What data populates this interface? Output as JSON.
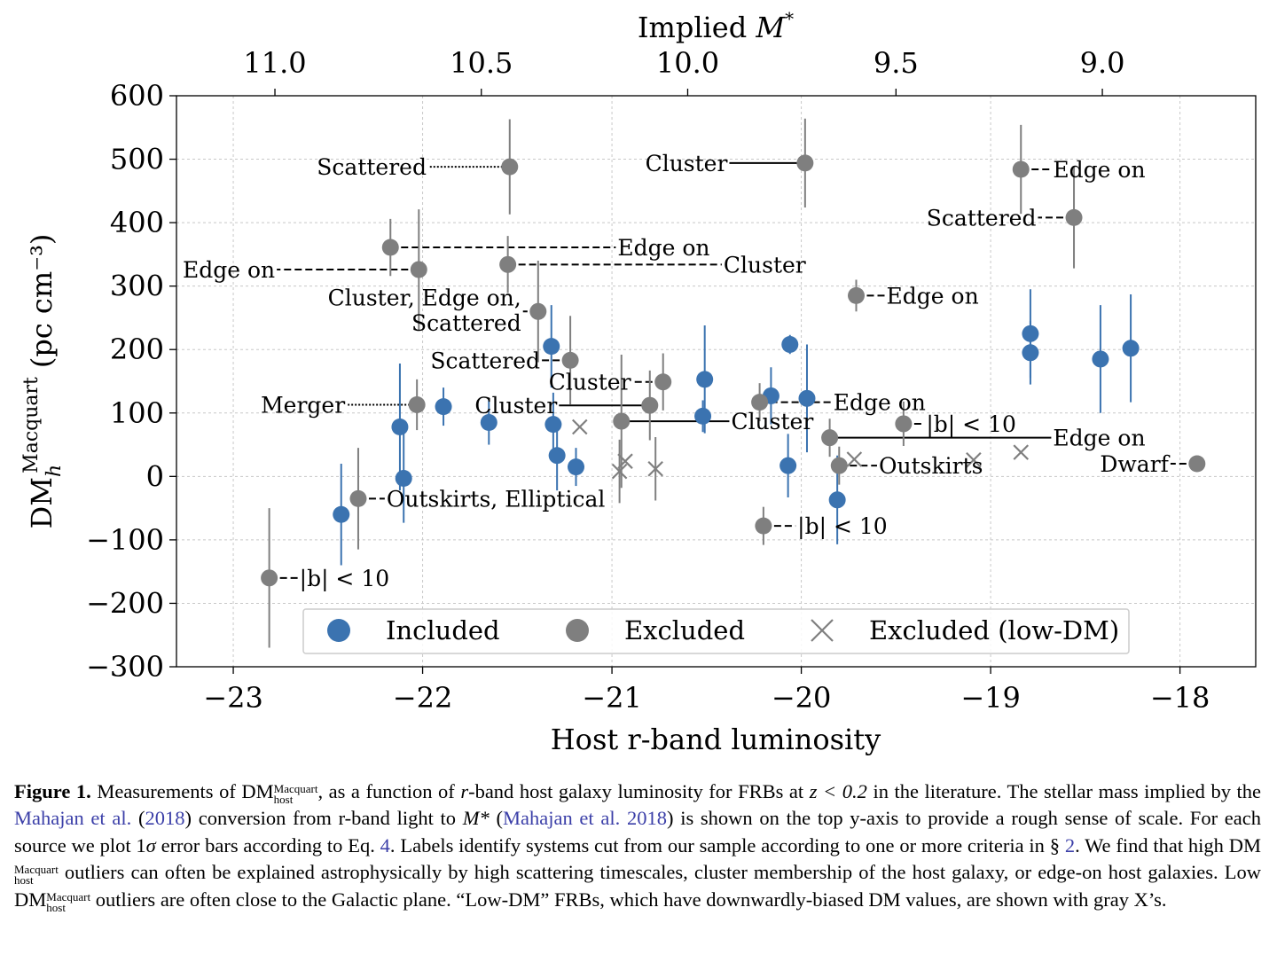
{
  "chart_data": {
    "type": "scatter",
    "xlabel": "Host r-band luminosity",
    "ylabel": "(pc cm⁻³)",
    "ylabel_base": "DM",
    "ylabel_sup": "Macquart",
    "ylabel_sub": "h",
    "top_axis_label": "Implied M*",
    "xlim": [
      -23.3,
      -17.6
    ],
    "ylim": [
      -300,
      600
    ],
    "x_ticks": [
      -23,
      -22,
      -21,
      -20,
      -19,
      -18
    ],
    "x_tick_labels": [
      "−23",
      "−22",
      "−21",
      "−20",
      "−19",
      "−18"
    ],
    "y_ticks": [
      -300,
      -200,
      -100,
      0,
      100,
      200,
      300,
      400,
      500,
      600
    ],
    "y_tick_labels": [
      "−300",
      "−200",
      "−100",
      "0",
      "100",
      "200",
      "300",
      "400",
      "500",
      "600"
    ],
    "top_ticks_x": [
      -22.78,
      -21.69,
      -20.6,
      -19.5,
      -18.41
    ],
    "top_tick_labels": [
      "11.0",
      "10.5",
      "10.0",
      "9.5",
      "9.0"
    ],
    "grid": true,
    "legend_position": "bottom",
    "legend": [
      {
        "label": "Included",
        "marker": "circle",
        "color": "#3b73b0"
      },
      {
        "label": "Excluded",
        "marker": "circle",
        "color": "#7f7f7f"
      },
      {
        "label": "Excluded (low-DM)",
        "marker": "x",
        "color": "#7f7f7f"
      }
    ],
    "series": [
      {
        "name": "Included",
        "color": "#3b73b0",
        "marker": "circle",
        "points": [
          {
            "x": -22.43,
            "y": -60,
            "err": 80
          },
          {
            "x": -22.12,
            "y": 78,
            "err": 100
          },
          {
            "x": -22.1,
            "y": -3,
            "err": 70
          },
          {
            "x": -21.89,
            "y": 110,
            "err": 30
          },
          {
            "x": -21.65,
            "y": 85,
            "err": 35
          },
          {
            "x": -21.32,
            "y": 205,
            "err": 65
          },
          {
            "x": -21.31,
            "y": 82,
            "err": 50
          },
          {
            "x": -21.29,
            "y": 33,
            "err": 55
          },
          {
            "x": -21.19,
            "y": 15,
            "err": 30
          },
          {
            "x": -20.52,
            "y": 95,
            "err": 25
          },
          {
            "x": -20.51,
            "y": 153,
            "err": 85
          },
          {
            "x": -20.16,
            "y": 127,
            "err": 45
          },
          {
            "x": -20.07,
            "y": 17,
            "err": 50
          },
          {
            "x": -20.06,
            "y": 208,
            "err": 15
          },
          {
            "x": -19.97,
            "y": 123,
            "err": 85
          },
          {
            "x": -19.81,
            "y": -37,
            "err": 70
          },
          {
            "x": -18.79,
            "y": 225,
            "err": 70
          },
          {
            "x": -18.79,
            "y": 195,
            "err": 50
          },
          {
            "x": -18.42,
            "y": 185,
            "err": 85
          },
          {
            "x": -18.26,
            "y": 202,
            "err": 85
          }
        ]
      },
      {
        "name": "Excluded",
        "color": "#7f7f7f",
        "marker": "circle",
        "points": [
          {
            "x": -22.81,
            "y": -160,
            "err": 110
          },
          {
            "x": -22.34,
            "y": -35,
            "err": 80
          },
          {
            "x": -22.17,
            "y": 361,
            "err": 45
          },
          {
            "x": -22.03,
            "y": 113,
            "err": 40
          },
          {
            "x": -22.02,
            "y": 326,
            "err": 95
          },
          {
            "x": -21.54,
            "y": 488,
            "err": 75
          },
          {
            "x": -21.55,
            "y": 334,
            "err": 45
          },
          {
            "x": -21.39,
            "y": 260,
            "err": 80
          },
          {
            "x": -21.22,
            "y": 183,
            "err": 70
          },
          {
            "x": -20.95,
            "y": 87,
            "err": 105
          },
          {
            "x": -20.8,
            "y": 112,
            "err": 55
          },
          {
            "x": -20.73,
            "y": 149,
            "err": 45
          },
          {
            "x": -20.22,
            "y": 117,
            "err": 30
          },
          {
            "x": -20.2,
            "y": -78,
            "err": 30
          },
          {
            "x": -19.98,
            "y": 494,
            "err": 70
          },
          {
            "x": -19.85,
            "y": 61,
            "err": 30
          },
          {
            "x": -19.8,
            "y": 17,
            "err": 30
          },
          {
            "x": -19.71,
            "y": 285,
            "err": 25
          },
          {
            "x": -19.46,
            "y": 83,
            "err": 35
          },
          {
            "x": -18.84,
            "y": 484,
            "err": 70
          },
          {
            "x": -18.56,
            "y": 408,
            "err": 80
          },
          {
            "x": -17.91,
            "y": 20,
            "err": 5
          }
        ]
      },
      {
        "name": "Excluded (low-DM)",
        "color": "#7f7f7f",
        "marker": "x",
        "points": [
          {
            "x": -21.17,
            "y": 78,
            "err": 0
          },
          {
            "x": -20.96,
            "y": 8,
            "err": 50
          },
          {
            "x": -20.93,
            "y": 24,
            "err": 0
          },
          {
            "x": -20.77,
            "y": 12,
            "err": 50
          },
          {
            "x": -19.72,
            "y": 27,
            "err": 0
          },
          {
            "x": -19.09,
            "y": 26,
            "err": 0
          },
          {
            "x": -18.84,
            "y": 38,
            "err": 0
          }
        ]
      }
    ],
    "annotations": [
      {
        "text": "Scattered",
        "px": -21.54,
        "py": 488,
        "lx": -21.97,
        "ly": 488,
        "anchor": "end",
        "style": "dotted"
      },
      {
        "text": "Cluster",
        "px": -19.98,
        "py": 494,
        "lx": -20.38,
        "ly": 494,
        "anchor": "end",
        "style": "solid"
      },
      {
        "text": "Edge on",
        "px": -18.84,
        "py": 484,
        "lx": -18.68,
        "ly": 484,
        "anchor": "start",
        "style": "dashed"
      },
      {
        "text": "Scattered",
        "px": -18.56,
        "py": 408,
        "lx": -18.75,
        "ly": 408,
        "anchor": "end",
        "style": "dashed"
      },
      {
        "text": "Edge on",
        "px": -22.17,
        "py": 361,
        "lx": -20.98,
        "ly": 361,
        "anchor": "start",
        "style": "dashed"
      },
      {
        "text": "Edge on",
        "px": -22.02,
        "py": 326,
        "lx": -22.77,
        "ly": 326,
        "anchor": "end",
        "style": "dashed"
      },
      {
        "text": "Cluster",
        "px": -21.55,
        "py": 334,
        "lx": -20.42,
        "ly": 334,
        "anchor": "start",
        "style": "dashed"
      },
      {
        "text": "Edge on",
        "px": -19.71,
        "py": 285,
        "lx": -19.56,
        "ly": 285,
        "anchor": "start",
        "style": "dashed"
      },
      {
        "text": "Scattered",
        "px": -21.22,
        "py": 183,
        "lx": -21.37,
        "ly": 183,
        "anchor": "end",
        "style": "dashed"
      },
      {
        "text": "Cluster",
        "px": -20.73,
        "py": 149,
        "lx": -20.89,
        "ly": 149,
        "anchor": "end",
        "style": "dashed"
      },
      {
        "text": "Merger",
        "px": -22.03,
        "py": 113,
        "lx": -22.4,
        "ly": 113,
        "anchor": "end",
        "style": "dotted"
      },
      {
        "text": "Cluster",
        "px": -20.8,
        "py": 112,
        "lx": -21.28,
        "ly": 112,
        "anchor": "end",
        "style": "solid"
      },
      {
        "text": "Cluster",
        "px": -20.95,
        "py": 87,
        "lx": -20.38,
        "ly": 87,
        "anchor": "start",
        "style": "solid"
      },
      {
        "text": "Edge on",
        "px": -20.22,
        "py": 117,
        "lx": -19.84,
        "ly": 117,
        "anchor": "start",
        "style": "dashed"
      },
      {
        "text": "|b| < 10",
        "px": -19.46,
        "py": 83,
        "lx": -19.35,
        "ly": 83,
        "anchor": "start",
        "style": "dashed"
      },
      {
        "text": "Edge on",
        "px": -19.85,
        "py": 61,
        "lx": -18.68,
        "ly": 61,
        "anchor": "start",
        "style": "solid"
      },
      {
        "text": "Outskirts",
        "px": -19.8,
        "py": 17,
        "lx": -19.6,
        "ly": 17,
        "anchor": "start",
        "style": "dashed"
      },
      {
        "text": "Dwarf",
        "px": -17.91,
        "py": 20,
        "lx": -18.05,
        "ly": 20,
        "anchor": "end",
        "style": "dashed"
      },
      {
        "text": "Outskirts, Elliptical",
        "px": -22.34,
        "py": -35,
        "lx": -22.2,
        "ly": -35,
        "anchor": "start",
        "style": "dashed"
      },
      {
        "text": "|b| < 10",
        "px": -20.2,
        "py": -78,
        "lx": -20.03,
        "ly": -78,
        "anchor": "start",
        "style": "dashed"
      },
      {
        "text": "|b| < 10",
        "px": -22.81,
        "py": -160,
        "lx": -22.66,
        "ly": -160,
        "anchor": "start",
        "style": "dashed"
      },
      {
        "text": "Scattered",
        "px": -21.39,
        "py": 260,
        "lx": -21.47,
        "ly": 260,
        "anchor": "end",
        "style": "dashed",
        "label_lines": [
          "Cluster, Edge on,",
          "Scattered"
        ],
        "label_y": [
          282,
          242
        ]
      }
    ]
  },
  "caption": {
    "label": "Figure 1.",
    "part1": " Measurements of DM",
    "dm_sup": "Macquart",
    "dm_sub": "host",
    "part2": ", as a function of ",
    "r": "r",
    "part3": "-band host galaxy luminosity for FRBs at ",
    "z": "z < 0.2",
    "part4": " in the literature. The stellar mass implied by the ",
    "cite1": "Mahajan et al.",
    "cite1_open": " (",
    "cite1_year": "2018",
    "cite1_close": ")",
    "part5": " conversion from r-band light to ",
    "mstar": "M*",
    "part6": " (",
    "cite2": "Mahajan et al. 2018",
    "part7": ") is shown on the top y-axis to provide a rough sense of scale. For each source we plot 1",
    "sigma": "σ",
    "part8": " error bars according to Eq. ",
    "eq": "4",
    "part9": ". Labels identify systems cut from our sample according to one or more criteria in § ",
    "sec": "2",
    "part10": ". We find that high DM",
    "part11": " outliers can often be explained astrophysically by high scattering timescales, cluster membership of the host galaxy, or edge-on host galaxies. Low DM",
    "part12": " outliers are often close to the Galactic plane. “Low-DM” FRBs, which have downwardly-biased DM values, are shown with gray X’s."
  }
}
